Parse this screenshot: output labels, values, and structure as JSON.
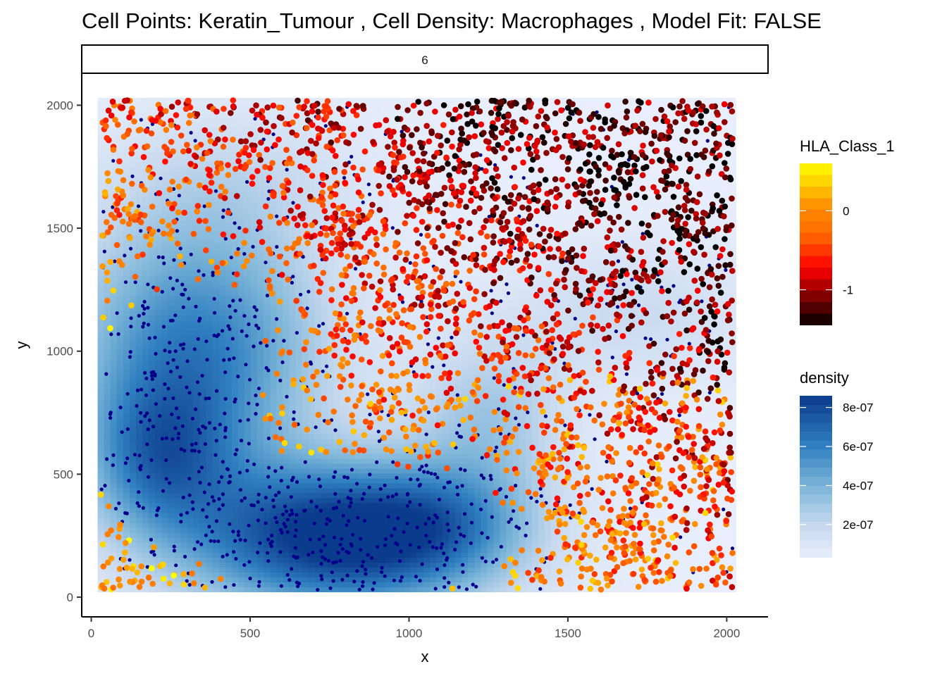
{
  "chart_data": {
    "type": "scatter",
    "title": "Cell Points: Keratin_Tumour , Cell Density: Macrophages , Model Fit: FALSE",
    "facet_label": "6",
    "xlabel": "x",
    "ylabel": "y",
    "xlim": [
      -30,
      2130
    ],
    "ylim": [
      -80,
      2130
    ],
    "x_ticks": [
      0,
      500,
      1000,
      1500,
      2000
    ],
    "y_ticks": [
      0,
      500,
      1000,
      1500,
      2000
    ],
    "density_extent": {
      "x": [
        20,
        2030
      ],
      "y": [
        20,
        2030
      ]
    },
    "density_peaks": [
      {
        "x": 780,
        "y": 240,
        "value": 8.6e-07,
        "sx": 330,
        "sy": 210
      },
      {
        "x": 330,
        "y": 1000,
        "value": 5.8e-07,
        "sx": 280,
        "sy": 380
      },
      {
        "x": 210,
        "y": 560,
        "value": 4.2e-07,
        "sx": 160,
        "sy": 220
      },
      {
        "x": 1250,
        "y": 720,
        "value": 2.6e-07,
        "sx": 170,
        "sy": 230
      },
      {
        "x": 1100,
        "y": 300,
        "value": 2.4e-07,
        "sx": 200,
        "sy": 160
      },
      {
        "x": 1700,
        "y": 1150,
        "value": 1.4e-07,
        "sx": 280,
        "sy": 200
      },
      {
        "x": 450,
        "y": 1700,
        "value": 1.2e-07,
        "sx": 300,
        "sy": 200
      }
    ],
    "density_baseline": 3e-08,
    "point_groups": [
      {
        "cell_type": "Keratin_Tumour",
        "approx_count": 2900,
        "hla_class_1_range": [
          -1.45,
          0.6
        ]
      },
      {
        "cell_type": "Macrophages",
        "approx_count": 900,
        "color": "#00008B"
      }
    ],
    "legends": {
      "hla": {
        "title": "HLA_Class_1",
        "ticks": [
          {
            "value": 0,
            "label": "0"
          },
          {
            "value": -1,
            "label": "-1"
          }
        ],
        "range": [
          -1.45,
          0.6
        ],
        "stops": [
          {
            "value": -1.45,
            "color": "#000000"
          },
          {
            "value": -1.3,
            "color": "#3a0000"
          },
          {
            "value": -1.05,
            "color": "#8b0000"
          },
          {
            "value": -0.72,
            "color": "#ff0000"
          },
          {
            "value": -0.3,
            "color": "#ff6a00"
          },
          {
            "value": 0.05,
            "color": "#ff8c00"
          },
          {
            "value": 0.35,
            "color": "#ffd000"
          },
          {
            "value": 0.6,
            "color": "#ffff00"
          }
        ]
      },
      "density": {
        "title": "density",
        "ticks": [
          {
            "value": 2e-07,
            "label": "2e-07"
          },
          {
            "value": 4e-07,
            "label": "4e-07"
          },
          {
            "value": 6e-07,
            "label": "6e-07"
          },
          {
            "value": 8e-07,
            "label": "8e-07"
          }
        ],
        "range": [
          3e-08,
          8.6e-07
        ],
        "stops": [
          {
            "value": 3e-08,
            "color": "#e8eefb"
          },
          {
            "value": 2e-07,
            "color": "#c6d8ee"
          },
          {
            "value": 4e-07,
            "color": "#7ab4d8"
          },
          {
            "value": 6e-07,
            "color": "#3080c0"
          },
          {
            "value": 8.6e-07,
            "color": "#0b3b8c"
          }
        ]
      }
    },
    "grid": false
  }
}
